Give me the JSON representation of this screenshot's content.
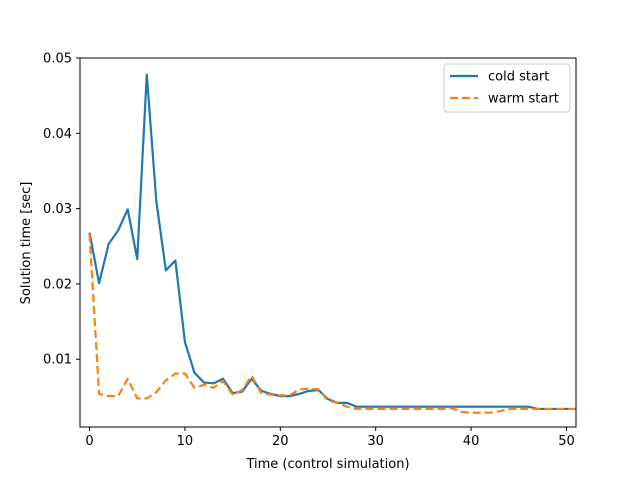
{
  "chart_data": {
    "type": "line",
    "title": "",
    "xlabel": "Time (control simulation)",
    "ylabel": "Solution time [sec]",
    "xlim": [
      -1,
      51
    ],
    "ylim": [
      0.001,
      0.05
    ],
    "xticks": [
      0,
      10,
      20,
      30,
      40,
      50
    ],
    "yticks": [
      0.01,
      0.02,
      0.03,
      0.04,
      0.05
    ],
    "ytick_labels": [
      "0.01",
      "0.02",
      "0.03",
      "0.04",
      "0.05"
    ],
    "grid": false,
    "legend_position": "top-right",
    "x": [
      0,
      1,
      2,
      3,
      4,
      5,
      6,
      7,
      8,
      9,
      10,
      11,
      12,
      13,
      14,
      15,
      16,
      17,
      18,
      19,
      20,
      21,
      22,
      23,
      24,
      25,
      26,
      27,
      28,
      29,
      30,
      31,
      32,
      33,
      34,
      35,
      36,
      37,
      38,
      39,
      40,
      41,
      42,
      43,
      44,
      45,
      46,
      47,
      48,
      49,
      50,
      51
    ],
    "series": [
      {
        "name": "cold start",
        "color": "#1f77b4",
        "style": "solid",
        "values": [
          0.0268,
          0.0201,
          0.0253,
          0.0271,
          0.0299,
          0.0233,
          0.0478,
          0.031,
          0.0218,
          0.0231,
          0.0123,
          0.0082,
          0.0069,
          0.0068,
          0.0074,
          0.0055,
          0.0057,
          0.0074,
          0.0058,
          0.0054,
          0.0051,
          0.0051,
          0.0054,
          0.0058,
          0.0059,
          0.0047,
          0.0042,
          0.0042,
          0.0037,
          0.0037,
          0.0037,
          0.0037,
          0.0037,
          0.0037,
          0.0037,
          0.0037,
          0.0037,
          0.0037,
          0.0037,
          0.0037,
          0.0037,
          0.0037,
          0.0037,
          0.0037,
          0.0037,
          0.0037,
          0.0037,
          0.0034,
          0.0034,
          0.0034,
          0.0034,
          0.0034
        ]
      },
      {
        "name": "warm start",
        "color": "#ff7f0e",
        "style": "dashed",
        "values": [
          0.0266,
          0.0054,
          0.0051,
          0.0051,
          0.0074,
          0.0048,
          0.0048,
          0.0056,
          0.0072,
          0.0081,
          0.0081,
          0.0062,
          0.0066,
          0.0062,
          0.0071,
          0.0053,
          0.0059,
          0.0078,
          0.0055,
          0.0053,
          0.0052,
          0.0052,
          0.006,
          0.0061,
          0.006,
          0.0045,
          0.0042,
          0.0037,
          0.0034,
          0.0034,
          0.0034,
          0.0034,
          0.0034,
          0.0034,
          0.0034,
          0.0034,
          0.0034,
          0.0034,
          0.0035,
          0.003,
          0.0029,
          0.0029,
          0.0029,
          0.0031,
          0.0034,
          0.0034,
          0.0034,
          0.0034,
          0.0034,
          0.0034,
          0.0034,
          0.0034
        ]
      }
    ]
  }
}
